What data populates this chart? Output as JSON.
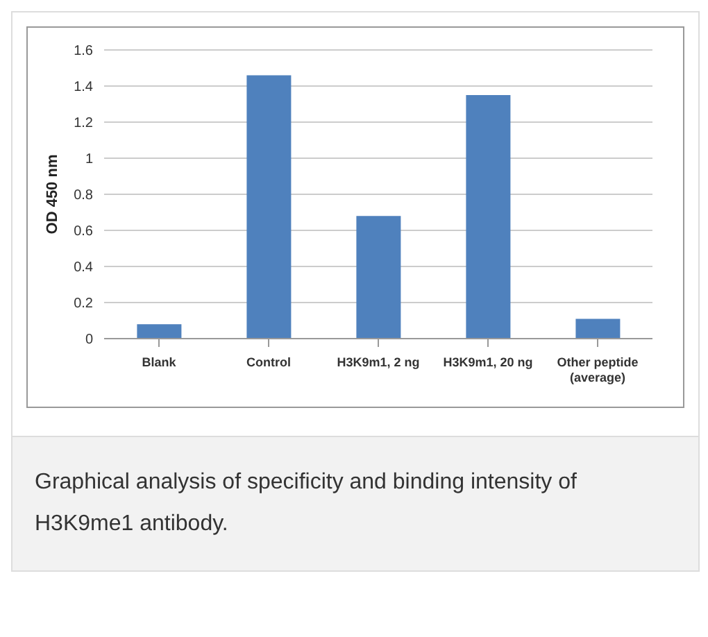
{
  "chart_data": {
    "type": "bar",
    "ylabel": "OD 450 nm",
    "categories": [
      "Blank",
      "Control",
      "H3K9m1, 2 ng",
      "H3K9m1, 20 ng",
      "Other peptide (average)"
    ],
    "values": [
      0.08,
      1.46,
      0.68,
      1.35,
      0.11
    ],
    "color": "#4f81bd",
    "ylim": [
      0,
      1.6
    ],
    "yticks": [
      0,
      0.2,
      0.4,
      0.6,
      0.8,
      1,
      1.2,
      1.4,
      1.6
    ],
    "grid": "y",
    "annotations": [
      "Graphical analysis of specificity and binding intensity of H3K9me1 antibody."
    ]
  }
}
